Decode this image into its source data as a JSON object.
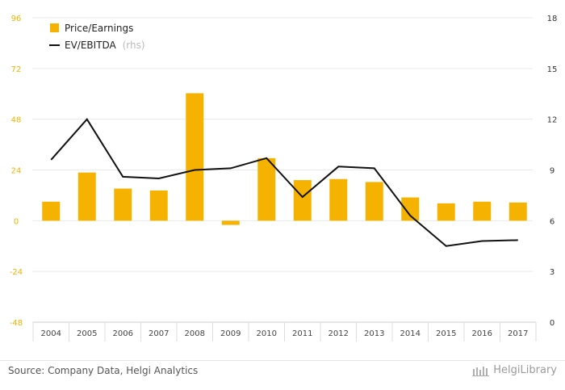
{
  "chart_data": {
    "type": "bar+line",
    "categories": [
      "2004",
      "2005",
      "2006",
      "2007",
      "2008",
      "2009",
      "2010",
      "2011",
      "2012",
      "2013",
      "2014",
      "2015",
      "2016",
      "2017"
    ],
    "series": [
      {
        "name": "Price/Earnings",
        "type": "bar",
        "axis": "left",
        "color": "#f5b300",
        "values": [
          9.0,
          22.8,
          15.2,
          14.3,
          60.3,
          -2.0,
          29.6,
          19.2,
          19.7,
          18.3,
          11.0,
          8.2,
          9.0,
          8.6
        ]
      },
      {
        "name": "EV/EBITDA",
        "name_suffix": "(rhs)",
        "type": "line",
        "axis": "right",
        "color": "#111111",
        "values": [
          9.6,
          12.0,
          8.6,
          8.5,
          9.0,
          9.1,
          9.7,
          7.4,
          9.2,
          9.1,
          6.3,
          4.5,
          4.8,
          4.85
        ]
      }
    ],
    "y_left": {
      "min": -48,
      "max": 96,
      "ticks": [
        "-48",
        "-24",
        "0",
        "24",
        "48",
        "72",
        "96"
      ]
    },
    "y_right": {
      "min": 0,
      "max": 18,
      "ticks": [
        "0",
        "3",
        "6",
        "9",
        "12",
        "15",
        "18"
      ]
    },
    "grid": true,
    "legend": "top-left"
  },
  "footer": {
    "source": "Source: Company Data, Helgi Analytics",
    "brand": "HelgiLibrary",
    "brand_icon": "library-icon"
  }
}
